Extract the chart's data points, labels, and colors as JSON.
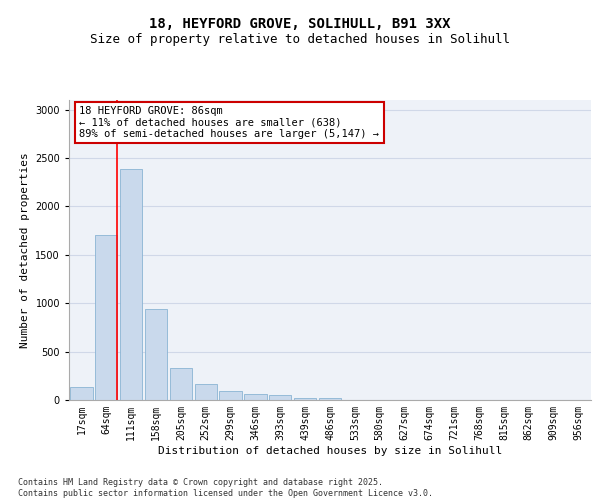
{
  "title1": "18, HEYFORD GROVE, SOLIHULL, B91 3XX",
  "title2": "Size of property relative to detached houses in Solihull",
  "xlabel": "Distribution of detached houses by size in Solihull",
  "ylabel": "Number of detached properties",
  "categories": [
    "17sqm",
    "64sqm",
    "111sqm",
    "158sqm",
    "205sqm",
    "252sqm",
    "299sqm",
    "346sqm",
    "393sqm",
    "439sqm",
    "486sqm",
    "533sqm",
    "580sqm",
    "627sqm",
    "674sqm",
    "721sqm",
    "768sqm",
    "815sqm",
    "862sqm",
    "909sqm",
    "956sqm"
  ],
  "values": [
    130,
    1700,
    2390,
    940,
    330,
    165,
    90,
    65,
    50,
    25,
    20,
    5,
    0,
    0,
    0,
    0,
    0,
    0,
    0,
    0,
    0
  ],
  "bar_color": "#c9d9ec",
  "bar_edge_color": "#8ab4d4",
  "grid_color": "#d0d8e8",
  "background_color": "#eef2f8",
  "red_line_x": 1.42,
  "ylim": [
    0,
    3100
  ],
  "yticks": [
    0,
    500,
    1000,
    1500,
    2000,
    2500,
    3000
  ],
  "annotation_text": "18 HEYFORD GROVE: 86sqm\n← 11% of detached houses are smaller (638)\n89% of semi-detached houses are larger (5,147) →",
  "annotation_box_color": "#cc0000",
  "footer": "Contains HM Land Registry data © Crown copyright and database right 2025.\nContains public sector information licensed under the Open Government Licence v3.0.",
  "title_fontsize": 10,
  "subtitle_fontsize": 9,
  "axis_label_fontsize": 8,
  "tick_fontsize": 7,
  "annotation_fontsize": 7.5
}
